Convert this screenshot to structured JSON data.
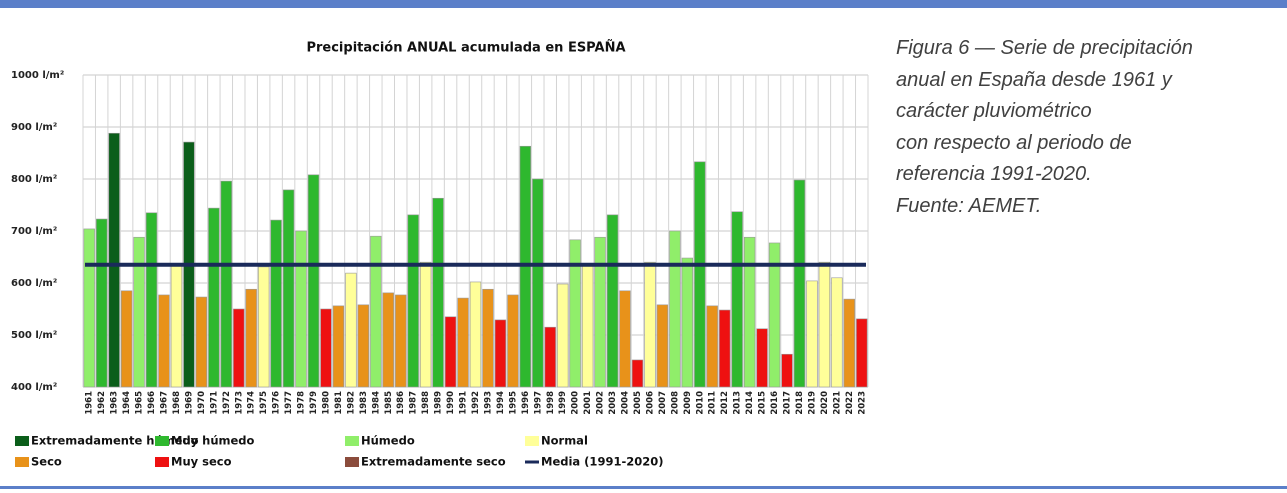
{
  "chart_data": {
    "type": "bar",
    "title": "Precipitación ANUAL acumulada en ESPAÑA",
    "categories": [
      "1961",
      "1962",
      "1963",
      "1964",
      "1965",
      "1966",
      "1967",
      "1968",
      "1969",
      "1970",
      "1971",
      "1972",
      "1973",
      "1974",
      "1975",
      "1976",
      "1977",
      "1978",
      "1979",
      "1980",
      "1981",
      "1982",
      "1983",
      "1984",
      "1985",
      "1986",
      "1987",
      "1988",
      "1989",
      "1990",
      "1991",
      "1992",
      "1993",
      "1994",
      "1995",
      "1996",
      "1997",
      "1998",
      "1999",
      "2000",
      "2001",
      "2002",
      "2003",
      "2004",
      "2005",
      "2006",
      "2007",
      "2008",
      "2009",
      "2010",
      "2011",
      "2012",
      "2013",
      "2014",
      "2015",
      "2016",
      "2017",
      "2018",
      "2019",
      "2020",
      "2021",
      "2022",
      "2023"
    ],
    "values": [
      704,
      723,
      888,
      585,
      688,
      735,
      577,
      635,
      871,
      573,
      744,
      796,
      550,
      588,
      631,
      721,
      779,
      700,
      808,
      550,
      556,
      619,
      558,
      690,
      581,
      577,
      731,
      640,
      763,
      535,
      571,
      602,
      588,
      529,
      577,
      863,
      800,
      515,
      598,
      683,
      637,
      688,
      731,
      585,
      452,
      640,
      558,
      700,
      648,
      833,
      556,
      548,
      737,
      688,
      512,
      677,
      463,
      798,
      604,
      640,
      610,
      569,
      531
    ],
    "colors": [
      "#90ee6a",
      "#2eb82e",
      "#0b5e1a",
      "#e8921a",
      "#90ee6a",
      "#2eb82e",
      "#e8921a",
      "#ffff99",
      "#0b5e1a",
      "#e8921a",
      "#2eb82e",
      "#2eb82e",
      "#ee1111",
      "#e8921a",
      "#ffff99",
      "#2eb82e",
      "#2eb82e",
      "#90ee6a",
      "#2eb82e",
      "#ee1111",
      "#e8921a",
      "#ffff99",
      "#e8921a",
      "#90ee6a",
      "#e8921a",
      "#e8921a",
      "#2eb82e",
      "#ffff99",
      "#2eb82e",
      "#ee1111",
      "#e8921a",
      "#ffff99",
      "#e8921a",
      "#ee1111",
      "#e8921a",
      "#2eb82e",
      "#2eb82e",
      "#ee1111",
      "#ffff99",
      "#90ee6a",
      "#ffff99",
      "#90ee6a",
      "#2eb82e",
      "#e8921a",
      "#ee1111",
      "#ffff99",
      "#e8921a",
      "#90ee6a",
      "#90ee6a",
      "#2eb82e",
      "#e8921a",
      "#ee1111",
      "#2eb82e",
      "#90ee6a",
      "#ee1111",
      "#90ee6a",
      "#ee1111",
      "#2eb82e",
      "#ffff99",
      "#ffff99",
      "#ffff99",
      "#e8921a",
      "#ee1111"
    ],
    "legend": [
      {
        "name": "Extremadamente húmedo",
        "color": "#0b5e1a"
      },
      {
        "name": "Muy húmedo",
        "color": "#2eb82e"
      },
      {
        "name": "Húmedo",
        "color": "#90ee6a"
      },
      {
        "name": "Normal",
        "color": "#ffff99"
      },
      {
        "name": "Seco",
        "color": "#e8921a"
      },
      {
        "name": "Muy seco",
        "color": "#ee1111"
      },
      {
        "name": "Extremadamente seco",
        "color": "#8b4c3c"
      }
    ],
    "mean": {
      "name": "Media (1991-2020)",
      "value": 635,
      "color": "#1a2a5a"
    },
    "ylim": [
      400,
      1000
    ],
    "yticks": [
      {
        "value": 400,
        "label": "400 l/m²"
      },
      {
        "value": 500,
        "label": "500 l/m²"
      },
      {
        "value": 600,
        "label": "600 l/m²"
      },
      {
        "value": 700,
        "label": "700 l/m²"
      },
      {
        "value": 800,
        "label": "800 l/m²"
      },
      {
        "value": 900,
        "label": "900 l/m²"
      },
      {
        "value": 1000,
        "label": "1000 l/m²"
      }
    ],
    "grid": true
  },
  "caption": [
    "Figura 6 — Serie de precipitación",
    "anual en España desde 1961 y",
    "carácter pluviométrico",
    "con respecto al periodo de",
    "referencia 1991-2020.",
    "Fuente: AEMET."
  ]
}
